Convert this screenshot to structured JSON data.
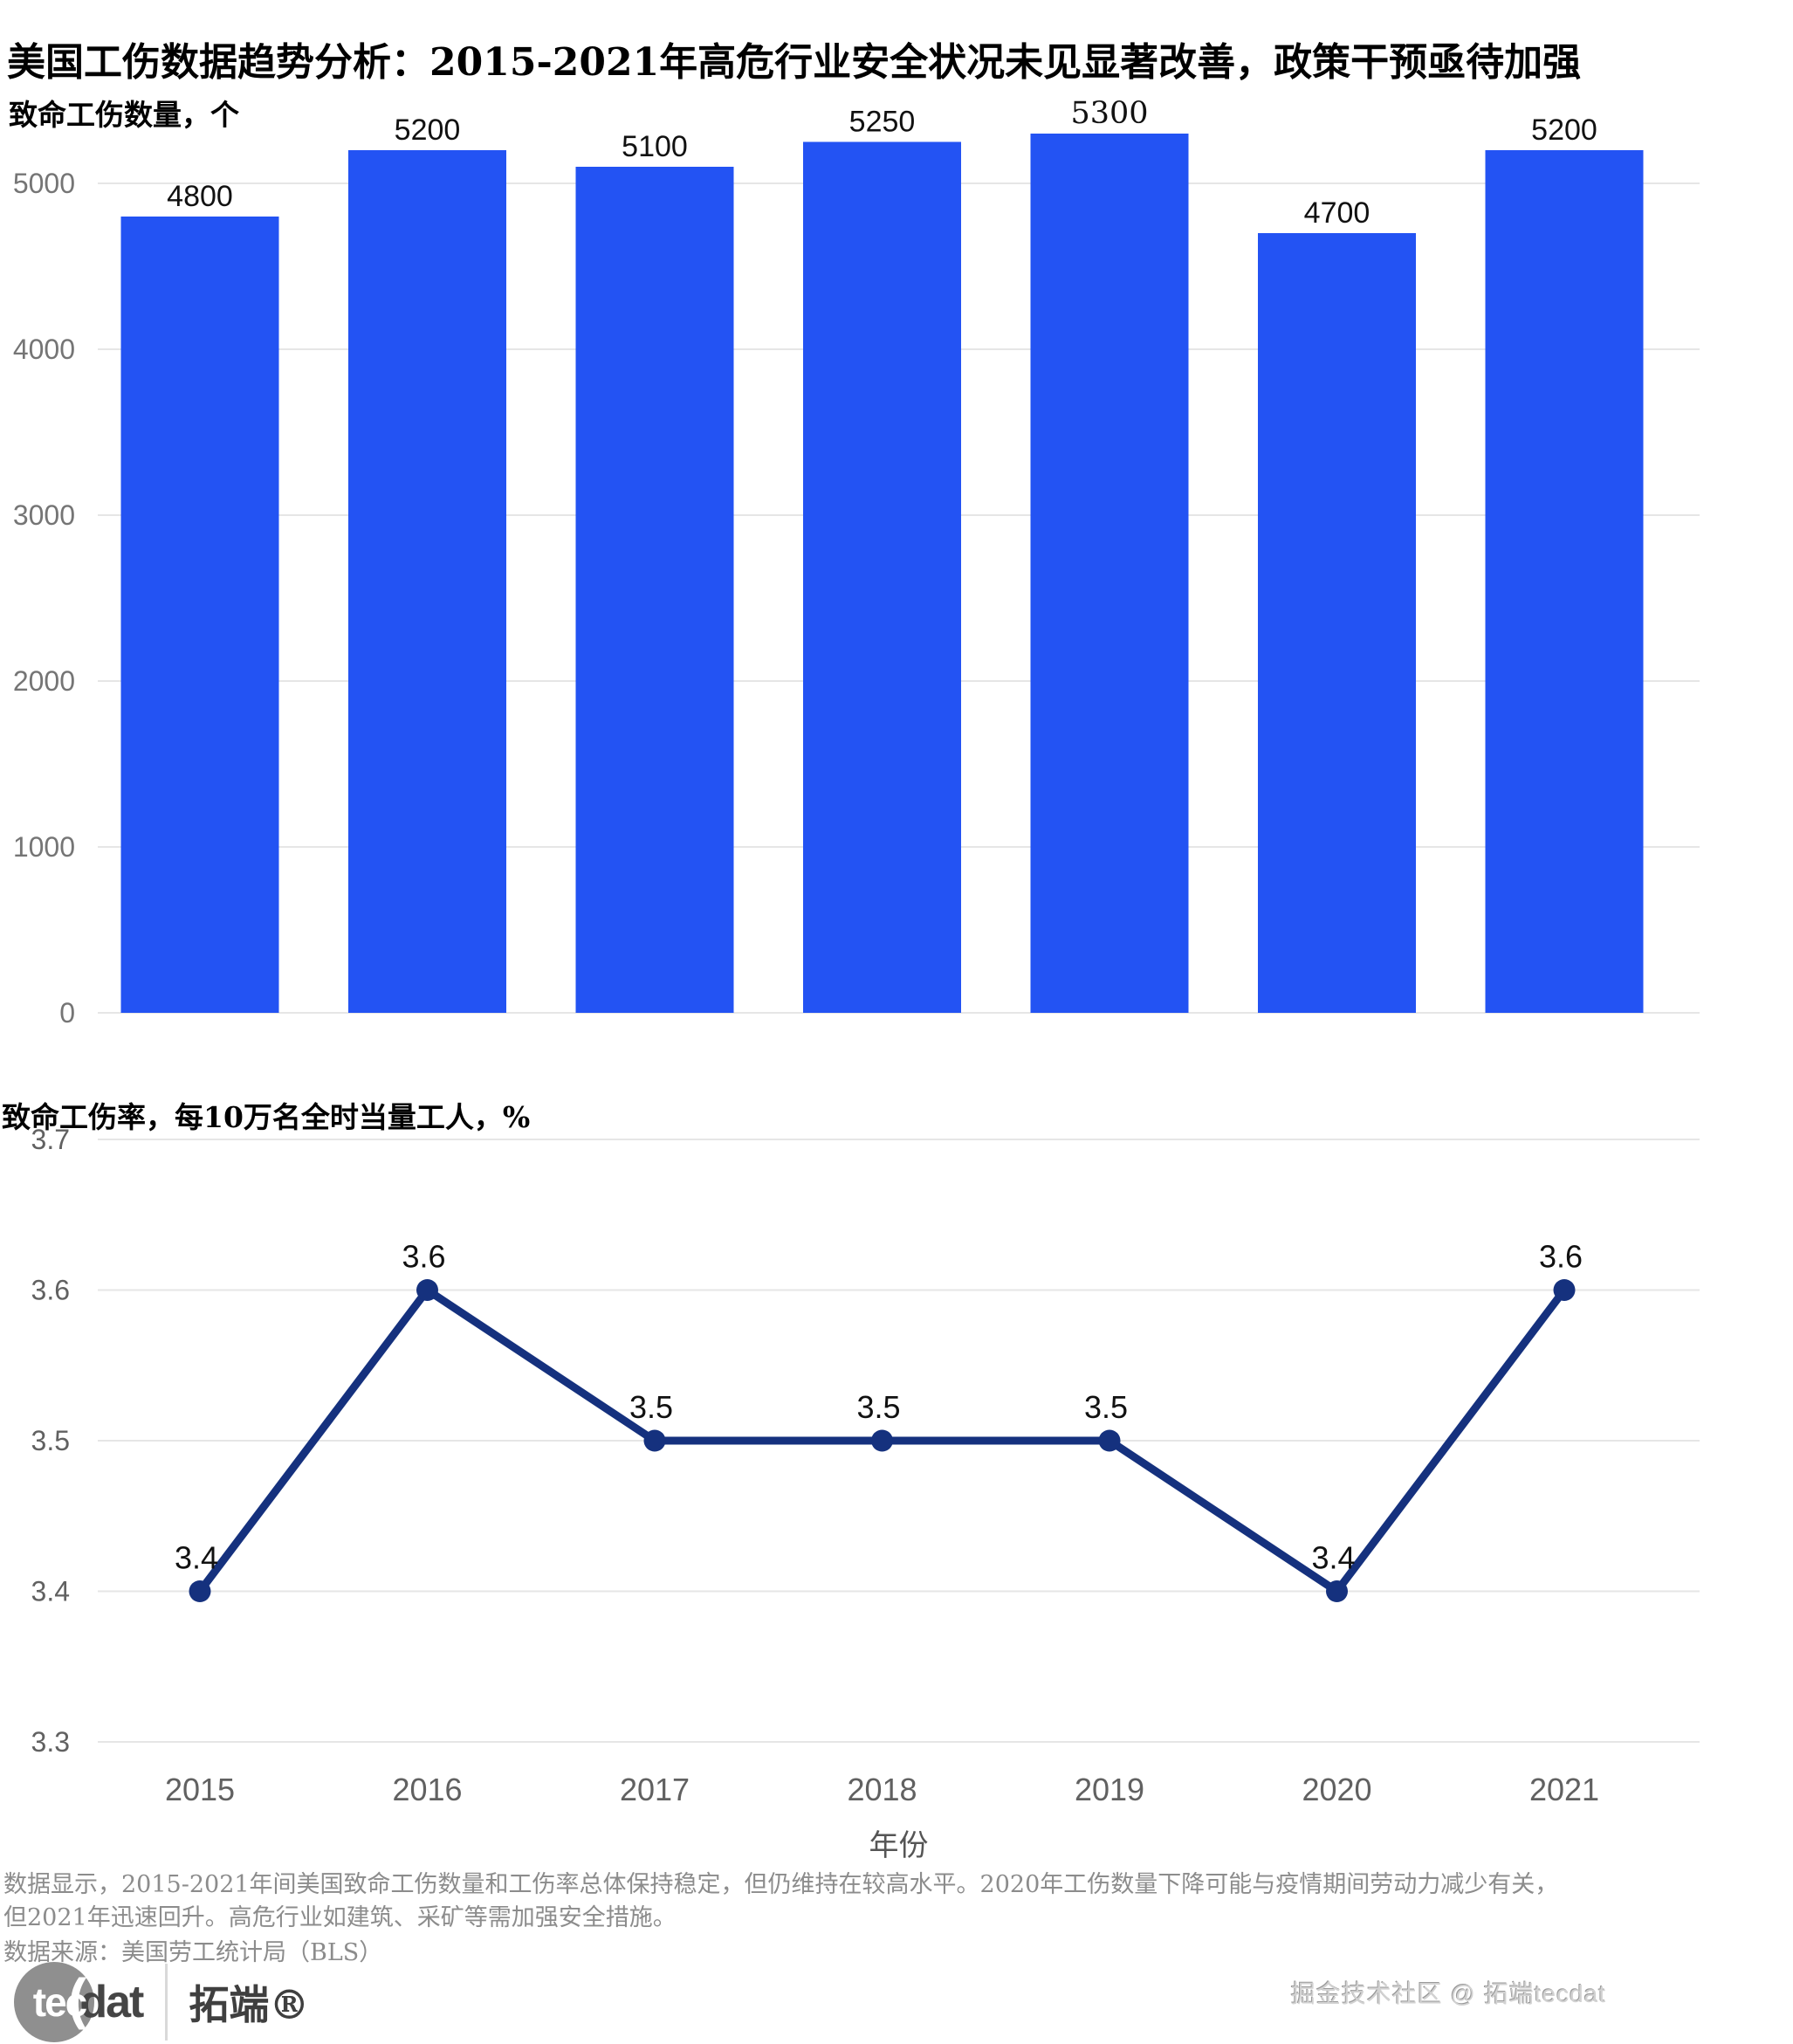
{
  "title": "美国工伤数据趋势分析：2015-2021年高危行业安全状况未见显著改善，政策干预亟待加强",
  "chart_data": [
    {
      "type": "bar",
      "title": "致命工伤数量，个",
      "categories": [
        "2015",
        "2016",
        "2017",
        "2018",
        "2019",
        "2020",
        "2021"
      ],
      "values": [
        4800,
        5200,
        5100,
        5250,
        5300,
        4700,
        5200
      ],
      "value_labels": [
        "4800",
        "5200",
        "5100",
        "5250",
        "5300",
        "4700",
        "5200"
      ],
      "value_label_fonts": [
        "sans",
        "sans",
        "sans",
        "sans",
        "serif",
        "sans",
        "sans"
      ],
      "ylim": [
        0,
        5000
      ],
      "yticks": [
        0,
        1000,
        2000,
        3000,
        4000,
        5000
      ],
      "grid": true,
      "legend": "none",
      "xlabel": "",
      "ylabel": "致命工伤数量，个"
    },
    {
      "type": "line",
      "title": "致命工伤率，每10万名全时当量工人，%",
      "x": [
        "2015",
        "2016",
        "2017",
        "2018",
        "2019",
        "2020",
        "2021"
      ],
      "values": [
        3.4,
        3.6,
        3.5,
        3.5,
        3.5,
        3.4,
        3.6
      ],
      "point_labels": [
        "3.4",
        "3.6",
        "3.5",
        "3.5",
        "3.5",
        "3.4",
        "3.6"
      ],
      "ylim": [
        3.3,
        3.7
      ],
      "yticks": [
        3.3,
        3.4,
        3.5,
        3.6,
        3.7
      ],
      "grid": true,
      "legend": "none",
      "xlabel": "年份",
      "ylabel": "致命工伤率，每10万名全时当量工人，%"
    }
  ],
  "footer": {
    "note_line1": "数据显示，2015-2021年间美国致命工伤数量和工伤率总体保持稳定，但仍维持在较高水平。2020年工伤数量下降可能与疫情期间劳动力减少有关，",
    "note_line2": "但2021年迅速回升。高危行业如建筑、采矿等需加强安全措施。",
    "source": "数据来源：美国劳工统计局（BLS）"
  },
  "branding": {
    "logo_tec": "tec",
    "logo_paren": "(",
    "logo_dat": "dat",
    "logo_cn": "拓端®",
    "watermark": "掘金技术社区 @ 拓端tecdat"
  },
  "colors": {
    "bar": "#2353f3",
    "line": "#15317e",
    "grid": "#e6e6e6",
    "bar_tick": "#757575",
    "line_tick": "#616161",
    "year_tick": "#616161",
    "value_label": "#111111",
    "xlabel_text": "#555555",
    "footer_text": "#8c8c8c",
    "watermark_text": "#d2d2d2",
    "logo_gray": "#8f8f8f",
    "logo_dark": "#454545"
  }
}
